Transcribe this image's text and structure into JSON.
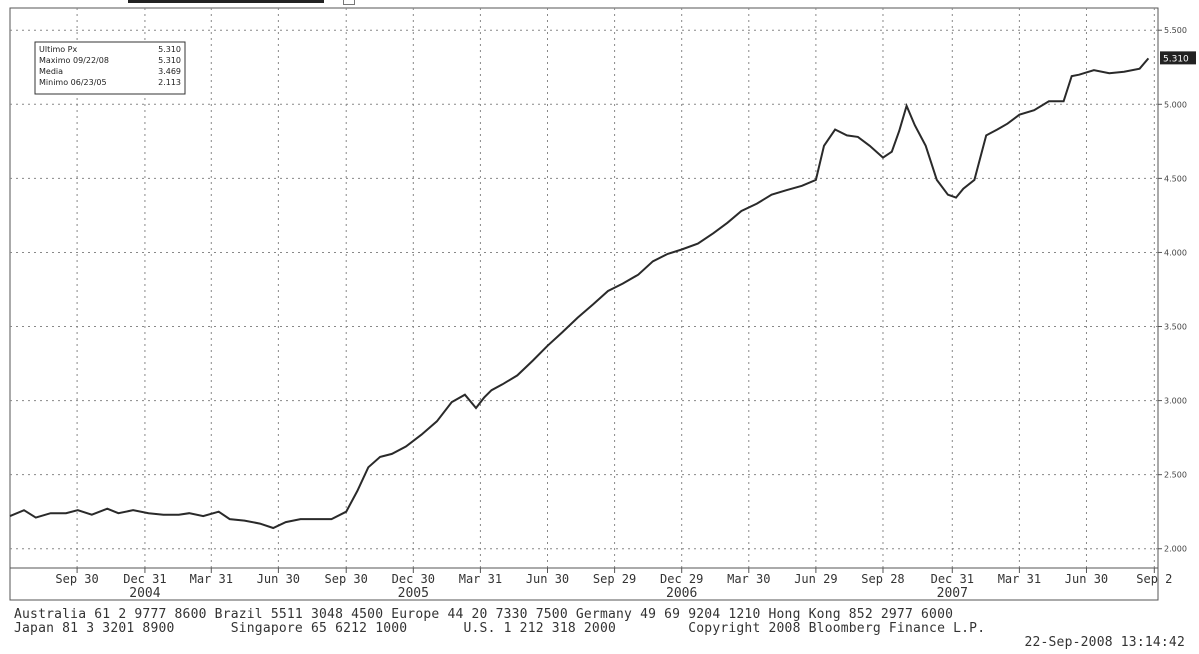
{
  "chart_data": {
    "type": "line",
    "y_ticks": [
      2.0,
      2.5,
      3.0,
      3.5,
      4.0,
      4.5,
      5.0,
      5.5
    ],
    "y_tick_labels": [
      "2.000",
      "2.500",
      "3.000",
      "3.500",
      "4.000",
      "4.500",
      "5.000",
      "5.500"
    ],
    "ylim": [
      1.87,
      5.65
    ],
    "last_value_label": "5.310",
    "x_date_labels": [
      "Sep 30",
      "Dec 31",
      "Mar 31",
      "Jun 30",
      "Sep 30",
      "Dec 30",
      "Mar 31",
      "Jun 30",
      "Sep 29",
      "Dec 29",
      "Mar 30",
      "Jun 29",
      "Sep 28",
      "Dec 31",
      "Mar 31",
      "Jun 30",
      "Sep 2"
    ],
    "x_years": [
      "2004",
      "2005",
      "2006",
      "2007"
    ],
    "grid": true,
    "legend_position": "top-left",
    "legend": [
      {
        "label": "Ultimo Px",
        "value": "5.310"
      },
      {
        "label": "Maximo 09/22/08",
        "value": "5.310"
      },
      {
        "label": "Media",
        "value": "3.469"
      },
      {
        "label": "Minimo 06/23/05",
        "value": "2.113"
      }
    ],
    "series": [
      {
        "x": [
          "2004-07-01",
          "2004-07-20",
          "2004-08-05",
          "2004-08-25",
          "2004-09-15",
          "2004-10-01",
          "2004-10-20",
          "2004-11-10",
          "2004-11-25",
          "2004-12-15",
          "2005-01-05",
          "2005-01-25",
          "2005-02-15",
          "2005-03-01",
          "2005-03-20",
          "2005-04-10",
          "2005-04-25",
          "2005-05-15",
          "2005-06-05",
          "2005-06-23",
          "2005-07-10",
          "2005-07-30",
          "2005-08-20",
          "2005-09-10",
          "2005-09-30",
          "2005-10-15",
          "2005-10-30",
          "2005-11-15",
          "2005-12-01",
          "2005-12-20",
          "2006-01-10",
          "2006-01-31",
          "2006-02-20",
          "2006-03-10",
          "2006-03-25",
          "2006-04-05",
          "2006-04-15",
          "2006-04-30",
          "2006-05-20",
          "2006-06-10",
          "2006-06-30",
          "2006-07-20",
          "2006-08-10",
          "2006-08-31",
          "2006-09-20",
          "2006-10-10",
          "2006-10-31",
          "2006-11-20",
          "2006-12-10",
          "2006-12-29",
          "2007-01-20",
          "2007-02-10",
          "2007-03-01",
          "2007-03-20",
          "2007-04-10",
          "2007-04-30",
          "2007-05-20",
          "2007-06-10",
          "2007-06-29",
          "2007-07-10",
          "2007-07-25",
          "2007-08-10",
          "2007-08-25",
          "2007-09-10",
          "2007-09-28",
          "2007-10-10",
          "2007-10-20",
          "2007-10-30",
          "2007-11-10",
          "2007-11-25",
          "2007-12-10",
          "2007-12-25",
          "2008-01-05",
          "2008-01-15",
          "2008-01-30",
          "2008-02-15",
          "2008-03-01",
          "2008-03-15",
          "2008-03-31",
          "2008-04-20",
          "2008-05-10",
          "2008-05-30",
          "2008-06-10",
          "2008-06-20",
          "2008-07-10",
          "2008-07-31",
          "2008-08-20",
          "2008-09-10",
          "2008-09-22"
        ],
        "y": [
          2.22,
          2.26,
          2.21,
          2.24,
          2.24,
          2.26,
          2.23,
          2.27,
          2.24,
          2.26,
          2.24,
          2.23,
          2.23,
          2.24,
          2.22,
          2.25,
          2.2,
          2.19,
          2.17,
          2.14,
          2.18,
          2.2,
          2.2,
          2.2,
          2.25,
          2.39,
          2.55,
          2.62,
          2.64,
          2.69,
          2.77,
          2.86,
          2.99,
          3.04,
          2.95,
          3.02,
          3.07,
          3.11,
          3.17,
          3.27,
          3.37,
          3.46,
          3.56,
          3.65,
          3.74,
          3.79,
          3.85,
          3.94,
          3.99,
          4.02,
          4.06,
          4.13,
          4.2,
          4.28,
          4.33,
          4.39,
          4.42,
          4.45,
          4.49,
          4.72,
          4.83,
          4.79,
          4.78,
          4.72,
          4.64,
          4.68,
          4.82,
          4.99,
          4.86,
          4.72,
          4.49,
          4.39,
          4.37,
          4.43,
          4.49,
          4.79,
          4.83,
          4.87,
          4.93,
          4.96,
          5.02,
          5.02,
          5.19,
          5.2,
          5.23,
          5.21,
          5.22,
          5.24,
          5.31
        ]
      }
    ]
  },
  "footer": {
    "line1": "Australia 61 2 9777 8600 Brazil 5511 3048 4500 Europe 44 20 7330 7500 Germany 49 69 9204 1210 Hong Kong 852 2977 6000",
    "line2": "Japan 81 3 3201 8900       Singapore 65 6212 1000       U.S. 1 212 318 2000         Copyright 2008 Bloomberg Finance L.P.",
    "line3": "22-Sep-2008 13:14:42"
  }
}
